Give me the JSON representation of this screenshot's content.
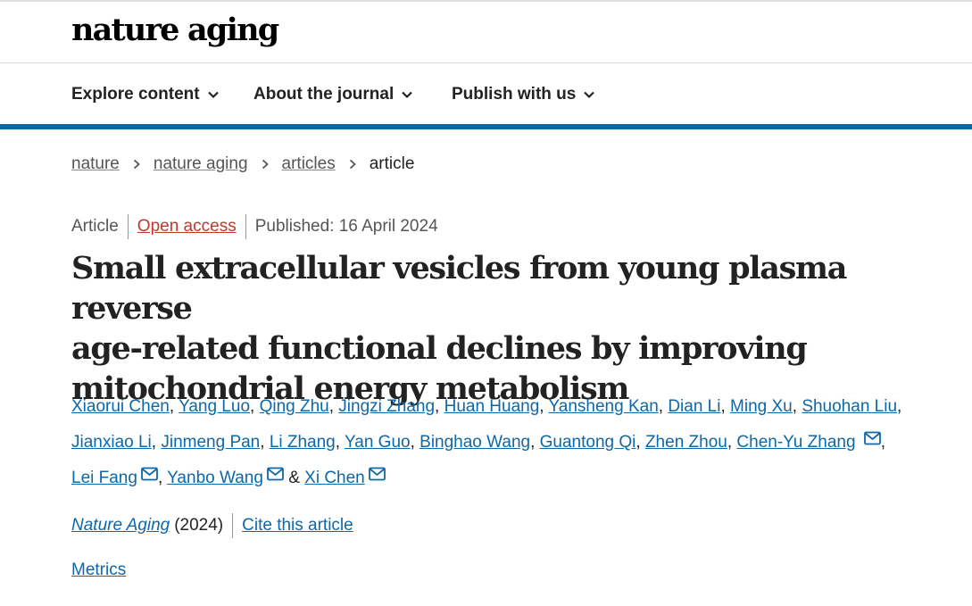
{
  "masthead": {
    "logo": "nature aging"
  },
  "nav": {
    "items": [
      {
        "label": "Explore content"
      },
      {
        "label": "About the journal"
      },
      {
        "label": "Publish with us"
      }
    ]
  },
  "breadcrumb": {
    "items": [
      "nature",
      "nature aging",
      "articles"
    ],
    "current": "article"
  },
  "article": {
    "type": "Article",
    "access": "Open access",
    "published": "Published: 16 April 2024",
    "title_lines": [
      "Small extracellular vesicles from young plasma reverse",
      "age-related functional declines by improving",
      "mitochondrial energy metabolism"
    ],
    "authors": [
      "Xiaorui Chen",
      "Yang Luo",
      "Qing Zhu",
      "Jingzi Zhang",
      "Huan Huang",
      "Yansheng Kan",
      "Dian Li",
      "Ming Xu",
      "Shuohan Liu",
      "Jianxiao Li",
      "Jinmeng Pan",
      "Li Zhang",
      "Yan Guo",
      "Binghao Wang",
      "Guantong Qi",
      "Zhen Zhou",
      "Chen-Yu Zhang",
      "Lei Fang",
      "Yanbo Wang",
      "Xi Chen"
    ],
    "journal": "Nature Aging",
    "year": "(2024)",
    "cite_label": "Cite this article",
    "metrics_label": "Metrics"
  },
  "colors": {
    "link": "#0f67a6",
    "open_access": "#c0392b",
    "bar": "#0f67a6"
  }
}
